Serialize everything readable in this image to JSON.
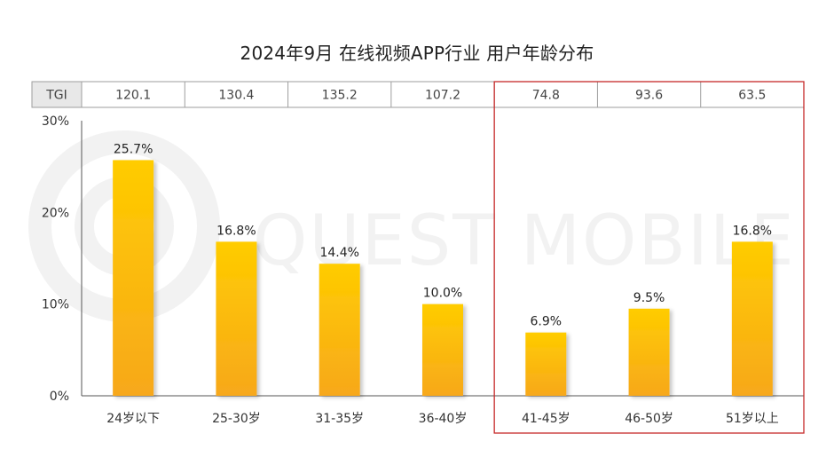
{
  "title": "2024年9月 在线视频APP行业 用户年龄分布",
  "watermark": "QUEST MOBILE",
  "tgi": {
    "label": "TGI",
    "values": [
      "120.1",
      "130.4",
      "135.2",
      "107.2",
      "74.8",
      "93.6",
      "63.5"
    ]
  },
  "highlight": {
    "color": "#c62828",
    "from_category": "41-45岁",
    "to_category": "51岁以上"
  },
  "colors": {
    "bar_top": "#ffcc00",
    "bar_bottom": "#f7a81b",
    "tgi_label_bg": "#e8e8e8",
    "grid": "#bdbdbd",
    "watermark": "#f2f2f2"
  },
  "chart_data": {
    "type": "bar",
    "title": "2024年9月 在线视频APP行业 用户年龄分布",
    "categories": [
      "24岁以下",
      "25-30岁",
      "31-35岁",
      "36-40岁",
      "41-45岁",
      "46-50岁",
      "51岁以上"
    ],
    "values": [
      25.7,
      16.8,
      14.4,
      10.0,
      6.9,
      9.5,
      16.8
    ],
    "data_labels": [
      "25.7%",
      "16.8%",
      "14.4%",
      "10.0%",
      "6.9%",
      "9.5%",
      "16.8%"
    ],
    "y_ticks": [
      "0%",
      "10%",
      "20%",
      "30%"
    ],
    "ylim": [
      0,
      30
    ],
    "xlabel": "",
    "ylabel": "",
    "grid": false,
    "legend": "none"
  }
}
